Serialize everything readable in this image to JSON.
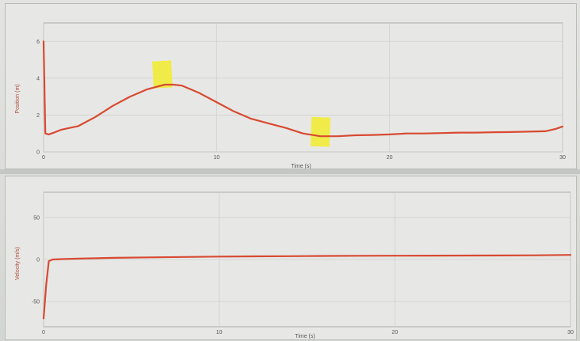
{
  "chart_data": [
    {
      "type": "line",
      "xlabel": "Time (s)",
      "ylabel": "Position (m)",
      "xlim": [
        0,
        30
      ],
      "ylim": [
        0,
        7
      ],
      "x_ticks": [
        "0",
        "10",
        "20",
        "30"
      ],
      "y_ticks": [
        "0",
        "2",
        "4",
        "6"
      ],
      "grid": true,
      "color": "#d84a33",
      "series": [
        {
          "x": [
            0,
            0.1,
            0.3,
            0.6,
            1,
            1.5,
            2,
            3,
            4,
            5,
            6,
            7,
            7.5,
            8,
            9,
            10,
            11,
            12,
            13,
            14,
            15,
            16,
            17,
            18,
            19,
            20,
            21,
            22,
            23,
            24,
            25,
            26,
            27,
            28,
            29,
            29.6,
            30
          ],
          "y": [
            6.0,
            1.0,
            0.95,
            1.05,
            1.2,
            1.3,
            1.4,
            1.9,
            2.5,
            3.0,
            3.4,
            3.65,
            3.65,
            3.6,
            3.2,
            2.7,
            2.2,
            1.8,
            1.55,
            1.3,
            1.0,
            0.85,
            0.85,
            0.9,
            0.92,
            0.95,
            1.0,
            1.0,
            1.02,
            1.05,
            1.05,
            1.07,
            1.08,
            1.1,
            1.12,
            1.25,
            1.38
          ]
        }
      ],
      "annotations": [
        "sticky-note",
        "sticky-note"
      ]
    },
    {
      "type": "line",
      "xlabel": "Time (s)",
      "ylabel": "Velocity (m/s)",
      "xlim": [
        0,
        30
      ],
      "ylim": [
        -80,
        80
      ],
      "x_ticks": [
        "0",
        "10",
        "20",
        "30"
      ],
      "y_ticks": [
        "50",
        "0",
        "-50"
      ],
      "y_tick_values": [
        50,
        0,
        -50
      ],
      "grid": true,
      "color": "#d84a33",
      "series": [
        {
          "x": [
            0,
            0.15,
            0.3,
            0.5,
            1,
            2,
            4,
            6,
            8,
            10,
            12,
            14,
            16,
            18,
            20,
            22,
            24,
            26,
            28,
            30
          ],
          "y": [
            -70,
            -30,
            -2,
            0,
            0.5,
            1,
            2,
            2.5,
            3,
            3.5,
            3.8,
            4,
            4.2,
            4.4,
            4.5,
            4.6,
            4.7,
            4.8,
            5,
            5.5
          ]
        }
      ]
    }
  ]
}
